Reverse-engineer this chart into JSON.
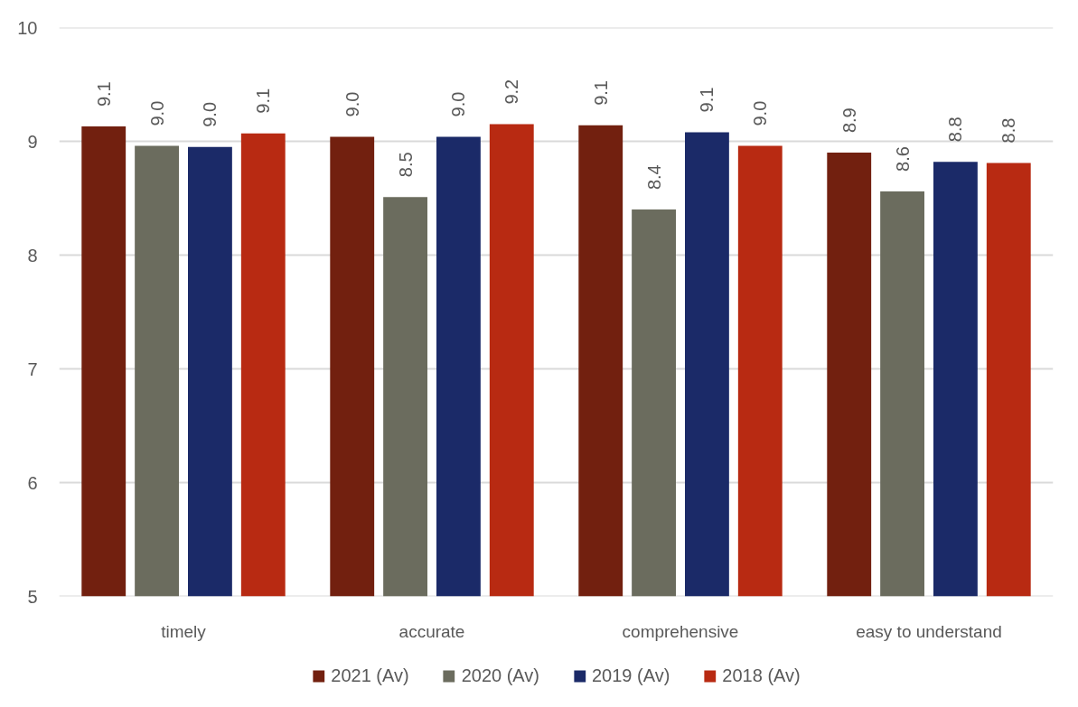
{
  "chart_data": {
    "type": "bar",
    "categories": [
      "timely",
      "accurate",
      "comprehensive",
      "easy to understand"
    ],
    "series": [
      {
        "name": "2021 (Av)",
        "color": "#72200f",
        "values": [
          9.13,
          9.04,
          9.14,
          8.9
        ],
        "value_labels": [
          "9.1",
          "9.0",
          "9.1",
          "8.9"
        ]
      },
      {
        "name": "2020 (Av)",
        "color": "#6b6c5e",
        "values": [
          8.96,
          8.51,
          8.4,
          8.56
        ],
        "value_labels": [
          "9.0",
          "8.5",
          "8.4",
          "8.6"
        ]
      },
      {
        "name": "2019 (Av)",
        "color": "#1b2a68",
        "values": [
          8.95,
          9.04,
          9.08,
          8.82
        ],
        "value_labels": [
          "9.0",
          "9.0",
          "9.1",
          "8.8"
        ]
      },
      {
        "name": "2018 (Av)",
        "color": "#b82a12",
        "values": [
          9.07,
          9.15,
          8.96,
          8.81
        ],
        "value_labels": [
          "9.1",
          "9.2",
          "9.0",
          "8.8"
        ]
      }
    ],
    "ylim": [
      5,
      10
    ],
    "yticks": [
      5,
      6,
      7,
      8,
      9,
      10
    ],
    "grid": "y",
    "legend": "bottom"
  }
}
